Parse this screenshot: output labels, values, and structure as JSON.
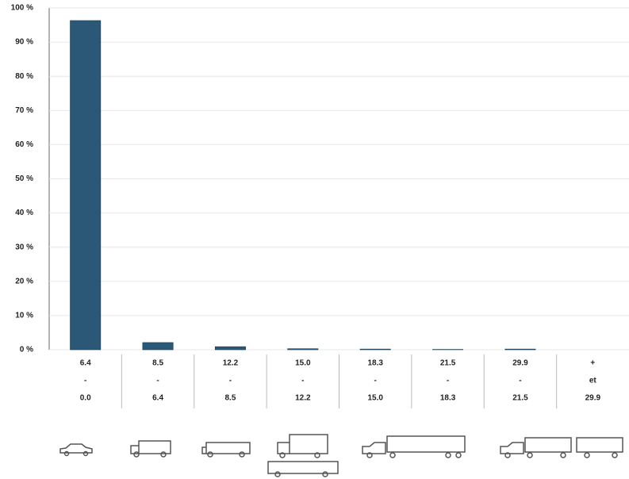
{
  "chart_data": {
    "type": "bar",
    "categories": [
      [
        "6.4",
        "-",
        "0.0"
      ],
      [
        "8.5",
        "-",
        "6.4"
      ],
      [
        "12.2",
        "-",
        "8.5"
      ],
      [
        "15.0",
        "-",
        "12.2"
      ],
      [
        "18.3",
        "-",
        "15.0"
      ],
      [
        "21.5",
        "-",
        "18.3"
      ],
      [
        "29.9",
        "-",
        "21.5"
      ],
      [
        "+",
        "et",
        "29.9"
      ]
    ],
    "values": [
      96.3,
      2.1,
      0.9,
      0.3,
      0.2,
      0.1,
      0.2,
      0
    ],
    "color": "#2b5876",
    "ylim": [
      0,
      100
    ],
    "yticks": [
      {
        "value": 0,
        "label": "0 %"
      },
      {
        "value": 10,
        "label": "10 %"
      },
      {
        "value": 20,
        "label": "20 %"
      },
      {
        "value": 30,
        "label": "30 %"
      },
      {
        "value": 40,
        "label": "40 %"
      },
      {
        "value": 50,
        "label": "50 %"
      },
      {
        "value": 60,
        "label": "60 %"
      },
      {
        "value": 70,
        "label": "70 %"
      },
      {
        "value": 80,
        "label": "80 %"
      },
      {
        "value": 90,
        "label": "90 %"
      },
      {
        "value": 100,
        "label": "100 %"
      }
    ],
    "grid": true
  }
}
